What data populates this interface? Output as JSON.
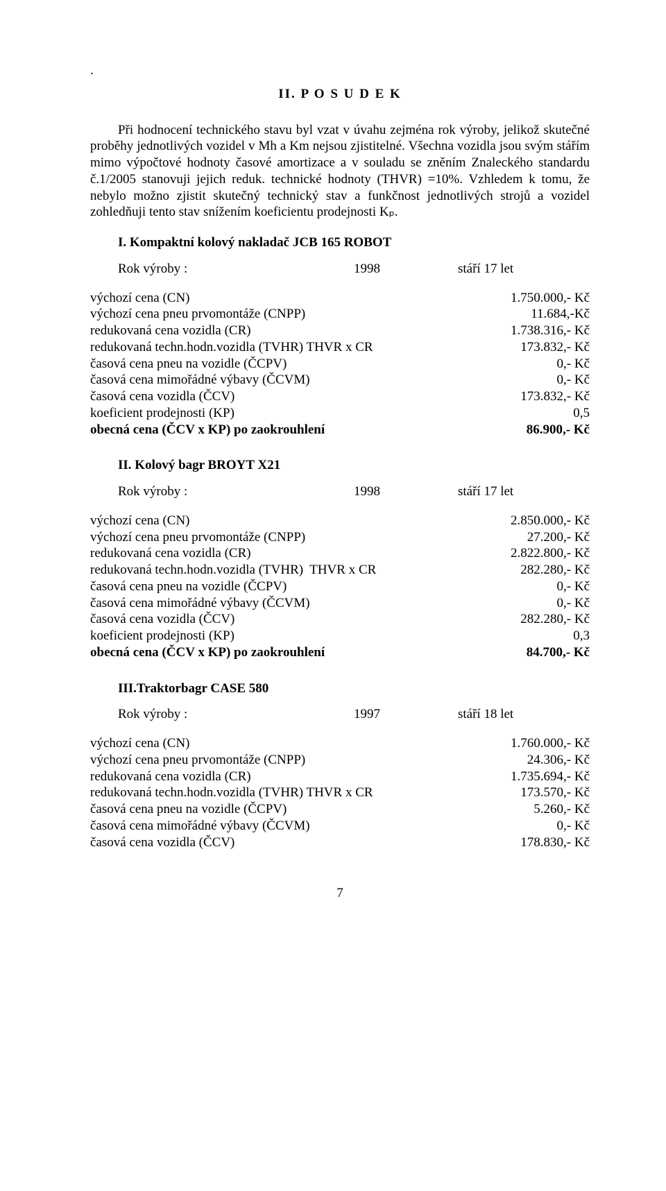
{
  "dot": ".",
  "title": "II. P O S U D E K",
  "para1": "Při hodnocení technického stavu byl vzat v úvahu zejména rok výroby, jelikož skutečné proběhy jednotlivých vozidel v Mh a Km nejsou zjistitelné. Všechna vozidla jsou svým stářím mimo výpočtové hodnoty časové amortizace a v souladu se zněním Znaleckého standardu č.1/2005 stanovuji jejich reduk. technické hodnoty (THVR) =10%. Vzhledem k tomu, že nebylo možno zjistit skutečný technický stav a funkčnost jednotlivých strojů a vozidel zohledňuji tento stav snížením koeficientu prodejnosti Kₚ.",
  "year_label": "Rok výroby :",
  "section1": {
    "head": "I. Kompaktní kolový nakladač JCB 165 ROBOT",
    "year": "1998",
    "age": "stáří 17 let"
  },
  "section2": {
    "head": "II. Kolový bagr BROYT X21",
    "year": "1998",
    "age": "stáří 17 let"
  },
  "section3": {
    "head": "III.Traktorbagr CASE 580",
    "year": "1997",
    "age": "stáří 18 let"
  },
  "labels": {
    "cn": "výchozí cena (CN)",
    "cnpp": "výchozí cena pneu prvomontáže (CNPP)",
    "cr": "redukovaná cena vozidla (CR)",
    "tvhr": "redukovaná techn.hodn.vozidla (TVHR) THVR x CR",
    "tvhr2": "redukovaná techn.hodn.vozidla (TVHR)  THVR x CR",
    "ccpv": "časová cena pneu na vozidle (ČCPV)",
    "ccvm": "časová cena mimořádné výbavy (ČCVM)",
    "ccv": "časová cena vozidla (ČCV)",
    "kp": "koeficient prodejnosti (KP)",
    "obec": "obecná cena (ČCV x KP) po zaokrouhlení"
  },
  "v1": {
    "cn": "1.750.000,- Kč",
    "cnpp": "11.684,-Kč",
    "cr": "1.738.316,- Kč",
    "tvhr": "173.832,- Kč",
    "ccpv": "0,- Kč",
    "ccvm": "0,- Kč",
    "ccv": "173.832,- Kč",
    "kp": "0,5",
    "obec": "86.900,- Kč"
  },
  "v2": {
    "cn": "2.850.000,- Kč",
    "cnpp": "27.200,- Kč",
    "cr": "2.822.800,- Kč",
    "tvhr": "282.280,- Kč",
    "ccpv": "0,- Kč",
    "ccvm": "0,- Kč",
    "ccv": "282.280,- Kč",
    "kp": "0,3",
    "obec": "84.700,- Kč"
  },
  "v3": {
    "cn": "1.760.000,- Kč",
    "cnpp": "24.306,- Kč",
    "cr": "1.735.694,- Kč",
    "tvhr": "173.570,- Kč",
    "ccpv": "5.260,- Kč",
    "ccvm": "0,- Kč",
    "ccv": "178.830,- Kč"
  },
  "pagenum": "7"
}
